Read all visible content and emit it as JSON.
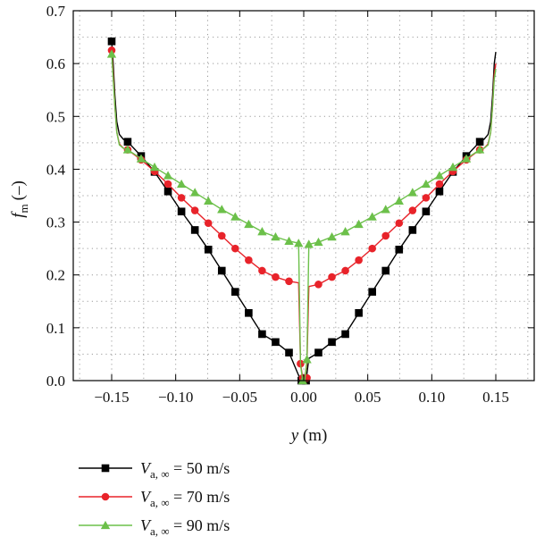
{
  "chart_data": {
    "type": "line",
    "xlabel": {
      "var": "y",
      "unit": "(m)"
    },
    "ylabel": {
      "var": "f",
      "sub": "m",
      "unit": "(–)"
    },
    "xlim": [
      -0.18,
      0.18
    ],
    "ylim": [
      0,
      0.7
    ],
    "xticks": [
      -0.15,
      -0.1,
      -0.05,
      0.0,
      0.05,
      0.1,
      0.15
    ],
    "xtick_labels": [
      "−0.15",
      "−0.10",
      "−0.05",
      "0.00",
      "0.05",
      "0.10",
      "0.15"
    ],
    "yticks": [
      0.0,
      0.1,
      0.2,
      0.3,
      0.4,
      0.5,
      0.6,
      0.7
    ],
    "ytick_labels": [
      "0.0",
      "0.1",
      "0.2",
      "0.3",
      "0.4",
      "0.5",
      "0.6",
      "0.7"
    ],
    "grid": "dotted",
    "legend_position": "below",
    "series": [
      {
        "name": "V_a,∞ = 50 m/s",
        "legend_label": {
          "sym": "V",
          "sub": "a, ∞",
          "rest": " = 50 m/s"
        },
        "color": "#000000",
        "marker": "square",
        "x": [
          -0.15,
          -0.1488,
          -0.1475,
          -0.146,
          -0.144,
          -0.141,
          -0.1375,
          -0.127,
          -0.1165,
          -0.106,
          -0.0955,
          -0.085,
          -0.0745,
          -0.064,
          -0.0535,
          -0.043,
          -0.0325,
          -0.022,
          -0.0115,
          -0.004,
          -0.0018,
          0.0,
          0.0018,
          0.004,
          0.0115,
          0.022,
          0.0325,
          0.043,
          0.0535,
          0.064,
          0.0745,
          0.085,
          0.0955,
          0.106,
          0.1165,
          0.127,
          0.1375,
          0.141,
          0.144,
          0.146,
          0.1475,
          0.1488,
          0.15
        ],
        "y": [
          0.642,
          0.6,
          0.54,
          0.49,
          0.466,
          0.457,
          0.452,
          0.425,
          0.395,
          0.358,
          0.32,
          0.285,
          0.248,
          0.208,
          0.168,
          0.128,
          0.088,
          0.073,
          0.053,
          0.01,
          0.0,
          0.0,
          0.0,
          0.042,
          0.053,
          0.073,
          0.088,
          0.128,
          0.168,
          0.208,
          0.248,
          0.285,
          0.32,
          0.358,
          0.395,
          0.425,
          0.452,
          0.457,
          0.466,
          0.49,
          0.54,
          0.6,
          0.622
        ],
        "marker_x": [
          -0.15,
          -0.1375,
          -0.127,
          -0.1165,
          -0.106,
          -0.0955,
          -0.085,
          -0.0745,
          -0.064,
          -0.0535,
          -0.043,
          -0.0325,
          -0.022,
          -0.0115,
          -0.0018,
          0.0018,
          0.0115,
          0.022,
          0.0325,
          0.043,
          0.0535,
          0.064,
          0.0745,
          0.085,
          0.0955,
          0.106,
          0.1165,
          0.127,
          0.1375
        ],
        "marker_y": [
          0.642,
          0.452,
          0.425,
          0.395,
          0.358,
          0.32,
          0.285,
          0.248,
          0.208,
          0.168,
          0.128,
          0.088,
          0.073,
          0.053,
          0.0,
          0.0,
          0.053,
          0.073,
          0.088,
          0.128,
          0.168,
          0.208,
          0.248,
          0.285,
          0.32,
          0.358,
          0.395,
          0.425,
          0.452
        ]
      },
      {
        "name": "V_a,∞ = 70 m/s",
        "legend_label": {
          "sym": "V",
          "sub": "a, ∞",
          "rest": " = 70 m/s"
        },
        "color": "#e8232a",
        "marker": "circle",
        "x": [
          -0.15,
          -0.1488,
          -0.1475,
          -0.146,
          -0.144,
          -0.141,
          -0.1375,
          -0.127,
          -0.1165,
          -0.106,
          -0.0955,
          -0.085,
          -0.0745,
          -0.064,
          -0.0535,
          -0.043,
          -0.0325,
          -0.022,
          -0.0115,
          -0.004,
          -0.0025,
          -0.0008,
          0.0008,
          0.0025,
          0.004,
          0.0115,
          0.022,
          0.0325,
          0.043,
          0.0535,
          0.064,
          0.0745,
          0.085,
          0.0955,
          0.106,
          0.1165,
          0.127,
          0.1375,
          0.141,
          0.144,
          0.146,
          0.1475,
          0.1488,
          0.15
        ],
        "y": [
          0.625,
          0.58,
          0.52,
          0.47,
          0.448,
          0.44,
          0.437,
          0.418,
          0.396,
          0.372,
          0.346,
          0.322,
          0.298,
          0.274,
          0.25,
          0.228,
          0.208,
          0.196,
          0.188,
          0.185,
          0.032,
          0.005,
          0.005,
          0.032,
          0.178,
          0.182,
          0.196,
          0.208,
          0.228,
          0.25,
          0.274,
          0.298,
          0.322,
          0.346,
          0.372,
          0.396,
          0.418,
          0.437,
          0.44,
          0.448,
          0.47,
          0.52,
          0.58,
          0.6
        ],
        "marker_x": [
          -0.15,
          -0.1375,
          -0.127,
          -0.1165,
          -0.106,
          -0.0955,
          -0.085,
          -0.0745,
          -0.064,
          -0.0535,
          -0.043,
          -0.0325,
          -0.022,
          -0.0115,
          -0.0025,
          -0.0008,
          0.0025,
          0.0115,
          0.022,
          0.0325,
          0.043,
          0.0535,
          0.064,
          0.0745,
          0.085,
          0.0955,
          0.106,
          0.1165,
          0.127,
          0.1375
        ],
        "marker_y": [
          0.625,
          0.437,
          0.418,
          0.396,
          0.372,
          0.346,
          0.322,
          0.298,
          0.274,
          0.25,
          0.228,
          0.208,
          0.196,
          0.188,
          0.032,
          0.005,
          0.005,
          0.182,
          0.196,
          0.208,
          0.228,
          0.25,
          0.274,
          0.298,
          0.322,
          0.346,
          0.372,
          0.396,
          0.418,
          0.437
        ]
      },
      {
        "name": "V_a,∞ = 90 m/s",
        "legend_label": {
          "sym": "V",
          "sub": "a, ∞",
          "rest": " = 90 m/s"
        },
        "color": "#6cc04a",
        "marker": "triangle",
        "x": [
          -0.15,
          -0.1488,
          -0.1475,
          -0.146,
          -0.144,
          -0.141,
          -0.1375,
          -0.127,
          -0.1165,
          -0.106,
          -0.0955,
          -0.085,
          -0.0745,
          -0.064,
          -0.0535,
          -0.043,
          -0.0325,
          -0.022,
          -0.0115,
          -0.004,
          -0.0025,
          -0.0008,
          0.0008,
          0.0025,
          0.004,
          0.0115,
          0.022,
          0.0325,
          0.043,
          0.0535,
          0.064,
          0.0745,
          0.085,
          0.0955,
          0.106,
          0.1165,
          0.127,
          0.1375,
          0.141,
          0.144,
          0.146,
          0.1475,
          0.1488,
          0.15
        ],
        "y": [
          0.618,
          0.57,
          0.52,
          0.47,
          0.446,
          0.44,
          0.437,
          0.42,
          0.404,
          0.388,
          0.372,
          0.356,
          0.34,
          0.324,
          0.31,
          0.296,
          0.282,
          0.272,
          0.264,
          0.26,
          0.03,
          0.0,
          0.0,
          0.04,
          0.258,
          0.262,
          0.272,
          0.282,
          0.296,
          0.31,
          0.324,
          0.34,
          0.356,
          0.372,
          0.388,
          0.404,
          0.42,
          0.437,
          0.44,
          0.446,
          0.47,
          0.52,
          0.57,
          0.59
        ],
        "marker_x": [
          -0.15,
          -0.1375,
          -0.127,
          -0.1165,
          -0.106,
          -0.0955,
          -0.085,
          -0.0745,
          -0.064,
          -0.0535,
          -0.043,
          -0.0325,
          -0.022,
          -0.0115,
          -0.004,
          -0.0008,
          0.0025,
          0.004,
          0.0115,
          0.022,
          0.0325,
          0.043,
          0.0535,
          0.064,
          0.0745,
          0.085,
          0.0955,
          0.106,
          0.1165,
          0.127,
          0.1375
        ],
        "marker_y": [
          0.618,
          0.437,
          0.42,
          0.404,
          0.388,
          0.372,
          0.356,
          0.34,
          0.324,
          0.31,
          0.296,
          0.282,
          0.272,
          0.264,
          0.26,
          0.0,
          0.04,
          0.258,
          0.262,
          0.272,
          0.282,
          0.296,
          0.31,
          0.324,
          0.34,
          0.356,
          0.372,
          0.388,
          0.404,
          0.42,
          0.437
        ]
      }
    ]
  }
}
